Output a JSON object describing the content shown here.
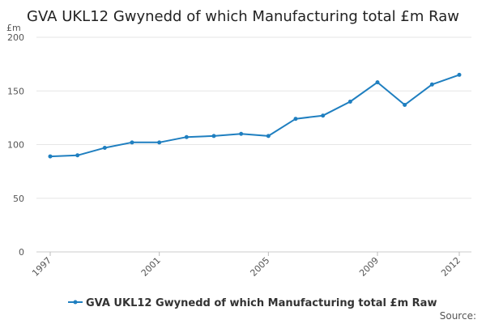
{
  "chart_data": {
    "type": "line",
    "title": "GVA UKL12 Gwynedd of which Manufacturing total £m Raw",
    "ylabel": "£m",
    "ylim": [
      0,
      200
    ],
    "yticks": [
      0,
      50,
      100,
      150,
      200
    ],
    "xlim": [
      1997,
      2012
    ],
    "xticks": [
      1997,
      2001,
      2005,
      2009,
      2012
    ],
    "grid": true,
    "legend_position": "bottom-center",
    "series": [
      {
        "name": "GVA UKL12 Gwynedd of which Manufacturing total £m Raw",
        "color": "#1f7fc0",
        "x": [
          1997,
          1998,
          1999,
          2000,
          2001,
          2002,
          2003,
          2004,
          2005,
          2006,
          2007,
          2008,
          2009,
          2010,
          2011,
          2012
        ],
        "values": [
          89,
          90,
          97,
          102,
          102,
          107,
          108,
          110,
          108,
          124,
          127,
          140,
          158,
          137,
          156,
          165
        ]
      }
    ]
  },
  "footer": {
    "source_label": "Source:"
  }
}
